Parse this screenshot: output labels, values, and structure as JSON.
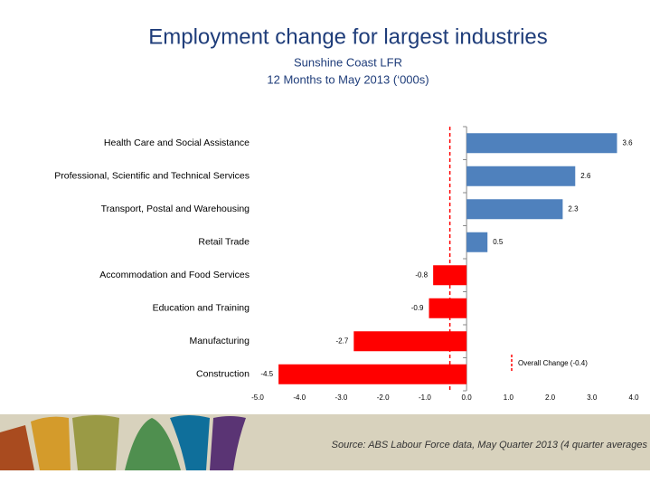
{
  "chart_data": {
    "type": "hbar",
    "title": "Employment change for largest industries",
    "subtitle": [
      "Sunshine Coast LFR",
      "12 Months to May 2013 (‘000s)"
    ],
    "categories": [
      "Health Care and Social Assistance",
      "Professional, Scientific and Technical Services",
      "Transport, Postal and Warehousing",
      "Retail Trade",
      "Accommodation and Food Services",
      "Education and Training",
      "Manufacturing",
      "Construction"
    ],
    "values": [
      3.6,
      2.6,
      2.3,
      0.5,
      -0.8,
      -0.9,
      -2.7,
      -4.5
    ],
    "colors": [
      "#4f81bd",
      "#4f81bd",
      "#4f81bd",
      "#4f81bd",
      "#ff0000",
      "#ff0000",
      "#ff0000",
      "#ff0000"
    ],
    "xlim": [
      -5,
      4
    ],
    "xticks": [
      {
        "value": -5,
        "label": "-5.0"
      },
      {
        "value": -4,
        "label": "-4.0"
      },
      {
        "value": -3,
        "label": "-3.0"
      },
      {
        "value": -2,
        "label": "-2.0"
      },
      {
        "value": -1,
        "label": "-1.0"
      },
      {
        "value": 0,
        "label": "0.0"
      },
      {
        "value": 1,
        "label": "1.0"
      },
      {
        "value": 2,
        "label": "2.0"
      },
      {
        "value": 3,
        "label": "3.0"
      },
      {
        "value": 4,
        "label": "4.0"
      }
    ],
    "reference_line": {
      "value": -0.4,
      "label": "Overall Change (-0.4)",
      "color": "#ff0000"
    },
    "source": "Source: ABS Labour Force data, May Quarter 2013 (4 quarter averages"
  }
}
